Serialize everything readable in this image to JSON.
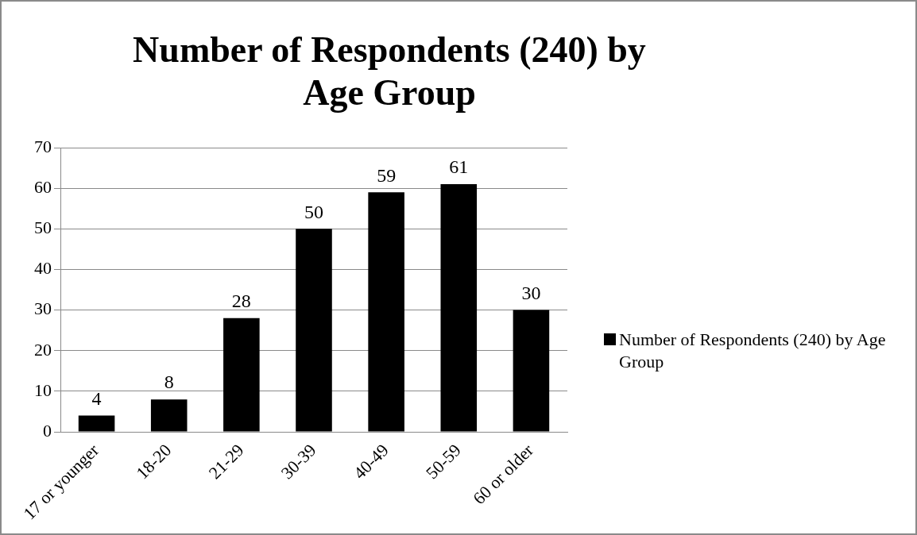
{
  "chart_data": {
    "type": "bar",
    "title": "Number of Respondents (240) by Age Group",
    "categories": [
      "17 or younger",
      "18-20",
      "21-29",
      "30-39",
      "40-49",
      "50-59",
      "60 or older"
    ],
    "series": [
      {
        "name": "Number of Respondents (240) by Age Group",
        "color": "#000000",
        "values": [
          4,
          8,
          28,
          50,
          59,
          61,
          30
        ]
      }
    ],
    "ylim": [
      0,
      70
    ],
    "yticks": [
      0,
      10,
      20,
      30,
      40,
      50,
      60,
      70
    ],
    "grid": "y",
    "legend": "right",
    "data_labels": true
  }
}
